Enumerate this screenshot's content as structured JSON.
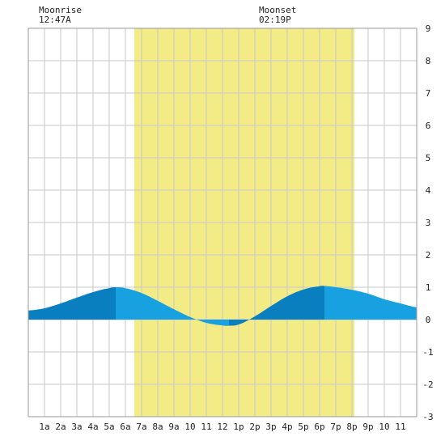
{
  "moon": {
    "moonrise_label": "Moonrise",
    "moonrise_time": "12:47A",
    "moonset_label": "Moonset",
    "moonset_time": "02:19P"
  },
  "colors": {
    "daylight": "#f3ec86",
    "tide_dark": "#0a7fbf",
    "tide_light": "#17a1e0",
    "grid": "#c8c8c8",
    "border": "#999999"
  },
  "chart_data": {
    "type": "area",
    "xlim": [
      0,
      24
    ],
    "ylim": [
      -3,
      9
    ],
    "x_ticks": [
      1,
      2,
      3,
      4,
      5,
      6,
      7,
      8,
      9,
      10,
      11,
      12,
      13,
      14,
      15,
      16,
      17,
      18,
      19,
      20,
      21,
      22,
      23
    ],
    "x_tick_labels": [
      "1a",
      "2a",
      "3a",
      "4a",
      "5a",
      "6a",
      "7a",
      "8a",
      "9a",
      "10",
      "11",
      "12",
      "1p",
      "2p",
      "3p",
      "4p",
      "5p",
      "6p",
      "7p",
      "8p",
      "9p",
      "10",
      "11"
    ],
    "y_ticks": [
      -3,
      -2,
      -1,
      0,
      1,
      2,
      3,
      4,
      5,
      6,
      7,
      8,
      9
    ],
    "y_tick_labels": [
      "-3",
      "-2",
      "-1",
      "0",
      "1",
      "2",
      "3",
      "4",
      "5",
      "6",
      "7",
      "8",
      "9"
    ],
    "daylight": {
      "start": 6.55,
      "end": 20.15
    },
    "moonrise": 0.78,
    "moonset": 14.32,
    "series": [
      {
        "x": [
          0,
          1,
          2,
          3,
          4,
          5,
          5.4,
          6,
          7,
          8,
          9,
          10,
          11,
          12,
          12.4,
          13,
          14,
          15,
          16,
          17,
          18,
          18.3,
          19,
          20,
          21,
          22,
          23,
          24
        ],
        "y": [
          0.28,
          0.35,
          0.5,
          0.68,
          0.85,
          0.97,
          1.0,
          0.97,
          0.82,
          0.58,
          0.32,
          0.08,
          -0.1,
          -0.18,
          -0.19,
          -0.15,
          0.1,
          0.42,
          0.72,
          0.93,
          1.03,
          1.04,
          1.0,
          0.92,
          0.8,
          0.63,
          0.5,
          0.38
        ]
      }
    ],
    "shade_bands": [
      {
        "start": 0,
        "end": 5.4,
        "tone": "dark"
      },
      {
        "start": 5.4,
        "end": 12.4,
        "tone": "light"
      },
      {
        "start": 12.4,
        "end": 18.3,
        "tone": "dark"
      },
      {
        "start": 18.3,
        "end": 24,
        "tone": "light"
      }
    ]
  }
}
